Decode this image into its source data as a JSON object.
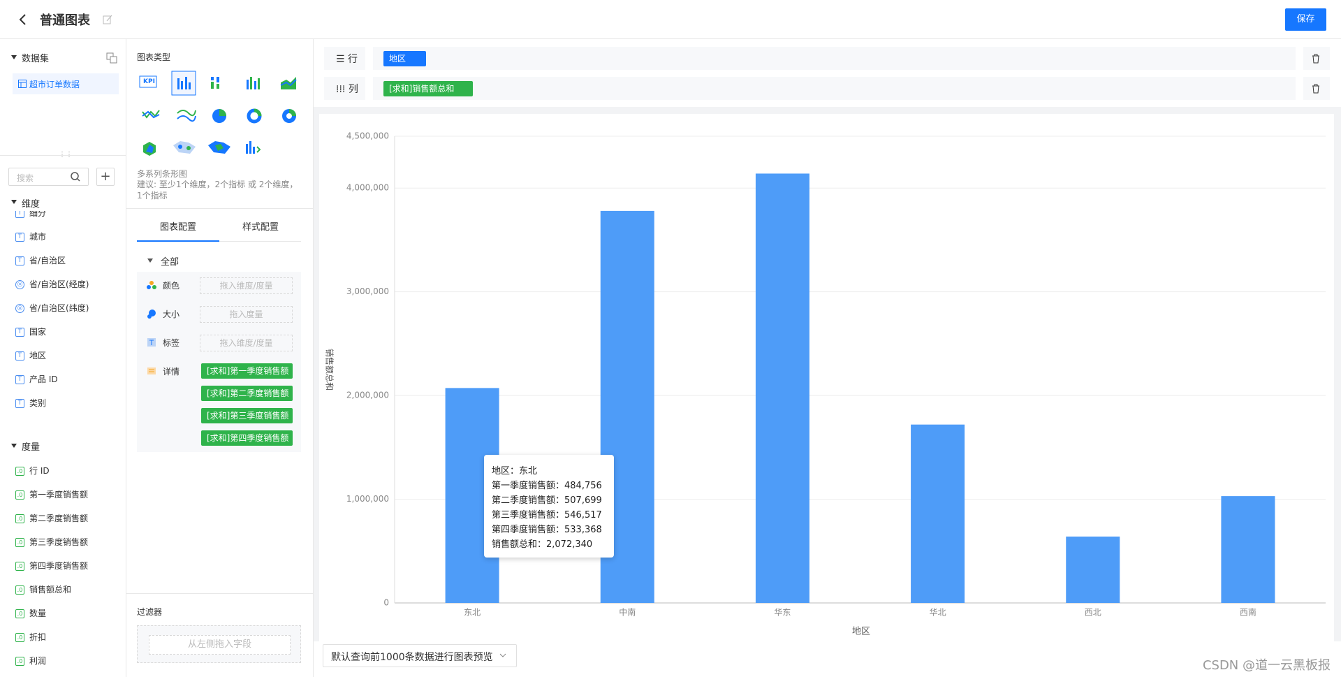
{
  "header": {
    "title": "普通图表",
    "save": "保存"
  },
  "dataset_panel": {
    "title": "数据集",
    "dataset": "超市订单数据",
    "search_placeholder": "搜索",
    "dimensions_title": "维度",
    "dimensions": [
      "细分",
      "城市",
      "省/自治区",
      "省/自治区(经度)",
      "省/自治区(纬度)",
      "国家",
      "地区",
      "产品 ID",
      "类别"
    ],
    "measures_title": "度量",
    "measures": [
      "行 ID",
      "第一季度销售额",
      "第二季度销售额",
      "第三季度销售额",
      "第四季度销售额",
      "销售额总和",
      "数量",
      "折扣",
      "利润"
    ]
  },
  "config_panel": {
    "chart_types_title": "图表类型",
    "kpi_icon": "KPI",
    "selected_type_name": "多系列条形图",
    "suggestion": "建议: 至少1个维度，2个指标 或 2个维度，1个指标",
    "tabs": [
      "图表配置",
      "样式配置"
    ],
    "group": "全部",
    "color_label": "颜色",
    "color_placeholder": "拖入维度/度量",
    "size_label": "大小",
    "size_placeholder": "拖入度量",
    "tag_label": "标签",
    "tag_placeholder": "拖入维度/度量",
    "detail_label": "详情",
    "detail_fields": [
      "[求和]第一季度销售额",
      "[求和]第二季度销售额",
      "[求和]第三季度销售额",
      "[求和]第四季度销售额"
    ],
    "filter_title": "过滤器",
    "filter_placeholder": "从左侧拖入字段"
  },
  "shelves": {
    "row_label": "行",
    "row_field": "地区",
    "column_label": "列",
    "column_field": "[求和]销售额总和"
  },
  "chart_data": {
    "type": "bar",
    "x_label": "地区",
    "y_label": "销售额总和",
    "categories": [
      "东北",
      "中南",
      "华东",
      "华北",
      "西北",
      "西南"
    ],
    "values": [
      2072340,
      3780000,
      4140000,
      1720000,
      640000,
      1030000
    ],
    "color": "#4e9cf8",
    "ylim": [
      0,
      4500000
    ],
    "yticks": [
      0,
      {
        "value": 1000000,
        "label": "1,000,000"
      },
      {
        "value": 2000000,
        "label": "2,000,000"
      },
      {
        "value": 3000000,
        "label": "3,000,000"
      },
      {
        "value": 4000000,
        "label": "4,000,000"
      },
      {
        "value": 4500000,
        "label": "4,500,000"
      }
    ],
    "grid": true,
    "tooltip": [
      "地区：东北",
      "第一季度销售额：484,756",
      "第二季度销售额：507,699",
      "第三季度销售额：546,517",
      "第四季度销售额：533,368",
      "销售额总和：2,072,340"
    ]
  },
  "preview_select": "默认查询前1000条数据进行图表预览",
  "watermark": "CSDN @道一云黑板报"
}
